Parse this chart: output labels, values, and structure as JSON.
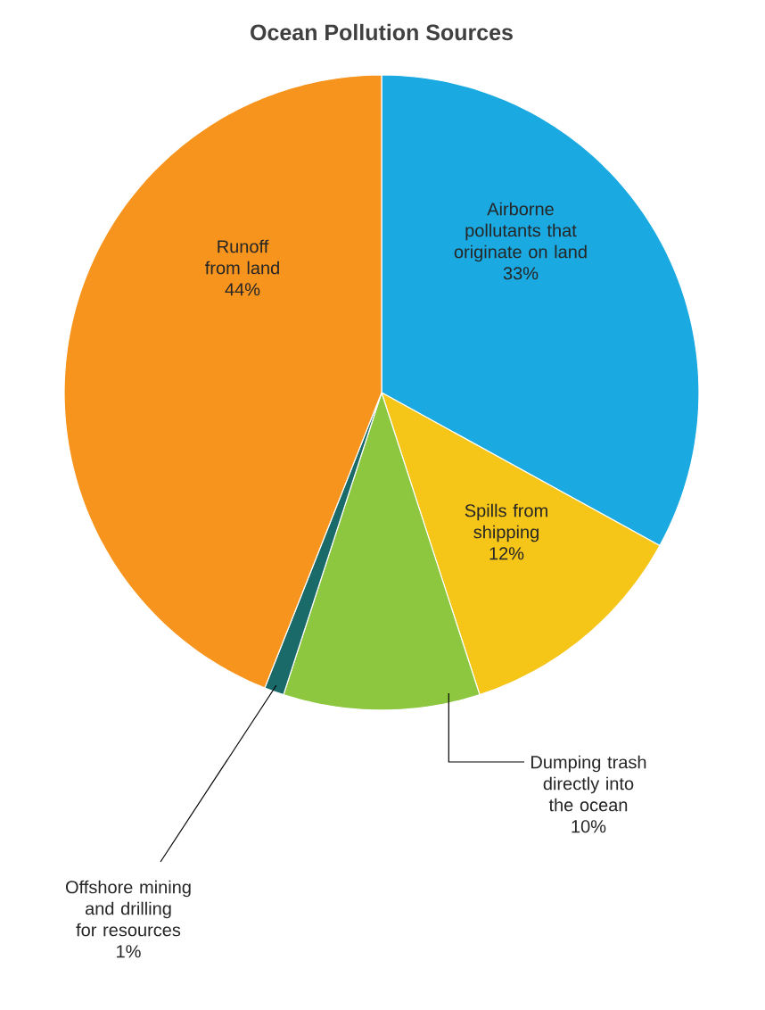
{
  "chart_data": {
    "type": "pie",
    "title": "Ocean Pollution Sources",
    "categories": [
      "Airborne pollutants that originate on land",
      "Spills from shipping",
      "Dumping trash directly into the ocean",
      "Offshore mining and drilling for resources",
      "Runoff from land"
    ],
    "values": [
      33,
      12,
      10,
      1,
      44
    ],
    "colors": [
      "#1aa9e0",
      "#f5c518",
      "#8dc63f",
      "#1a6a6a",
      "#f7941d"
    ],
    "value_labels": [
      "33%",
      "12%",
      "10%",
      "1%",
      "44%"
    ]
  }
}
